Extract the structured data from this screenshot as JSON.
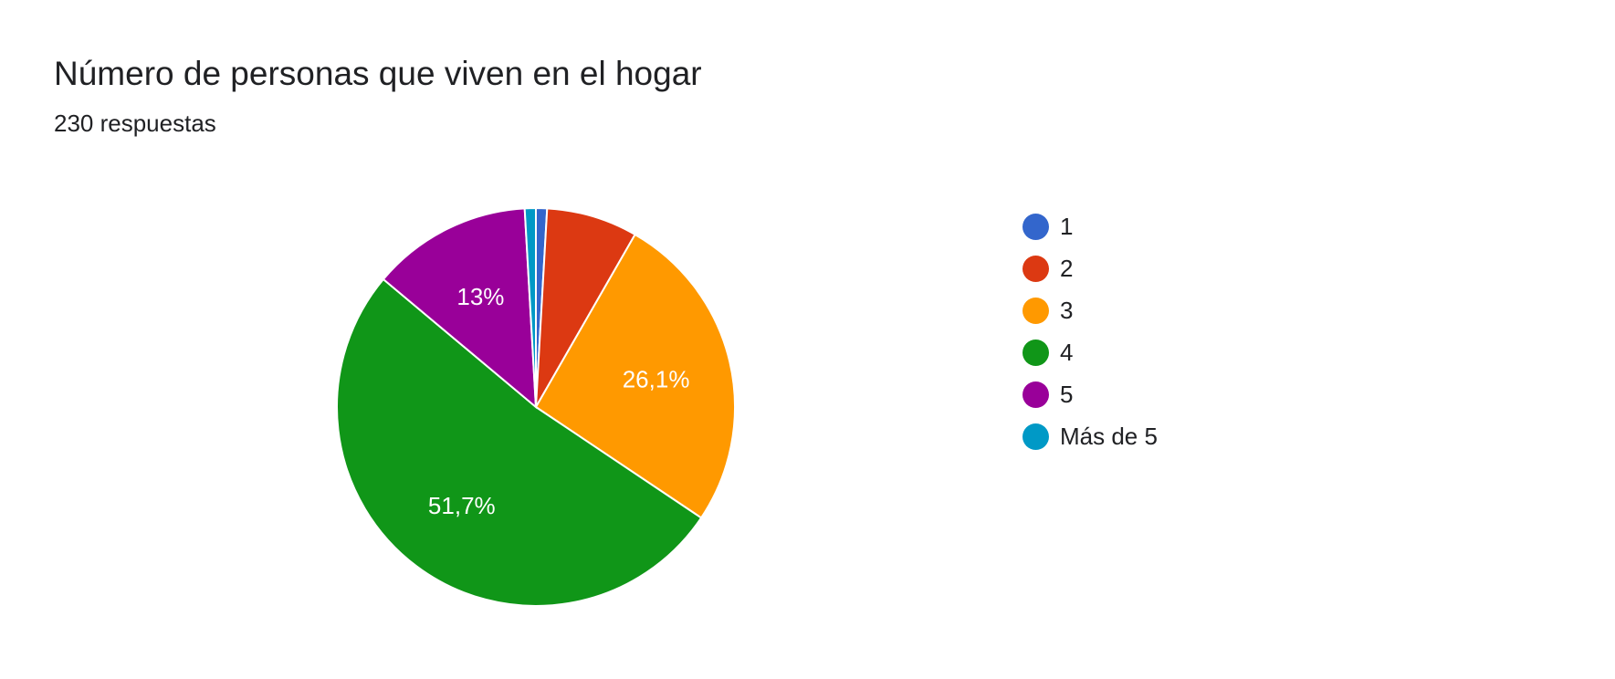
{
  "header": {
    "title": "Número de personas que viven en el hogar",
    "subtitle": "230 respuestas"
  },
  "chart_data": {
    "type": "pie",
    "categories": [
      "1",
      "2",
      "3",
      "4",
      "5",
      "Más de 5"
    ],
    "values": [
      0.9,
      7.4,
      26.1,
      51.7,
      13.0,
      0.9
    ],
    "data_labels": [
      "",
      "",
      "26,1%",
      "51,7%",
      "13%",
      ""
    ],
    "colors": [
      "#3366cc",
      "#dc3912",
      "#ff9900",
      "#109618",
      "#990099",
      "#0099c6"
    ],
    "legend_position": "right",
    "start_angle_deg": 90,
    "direction": "clockwise"
  }
}
